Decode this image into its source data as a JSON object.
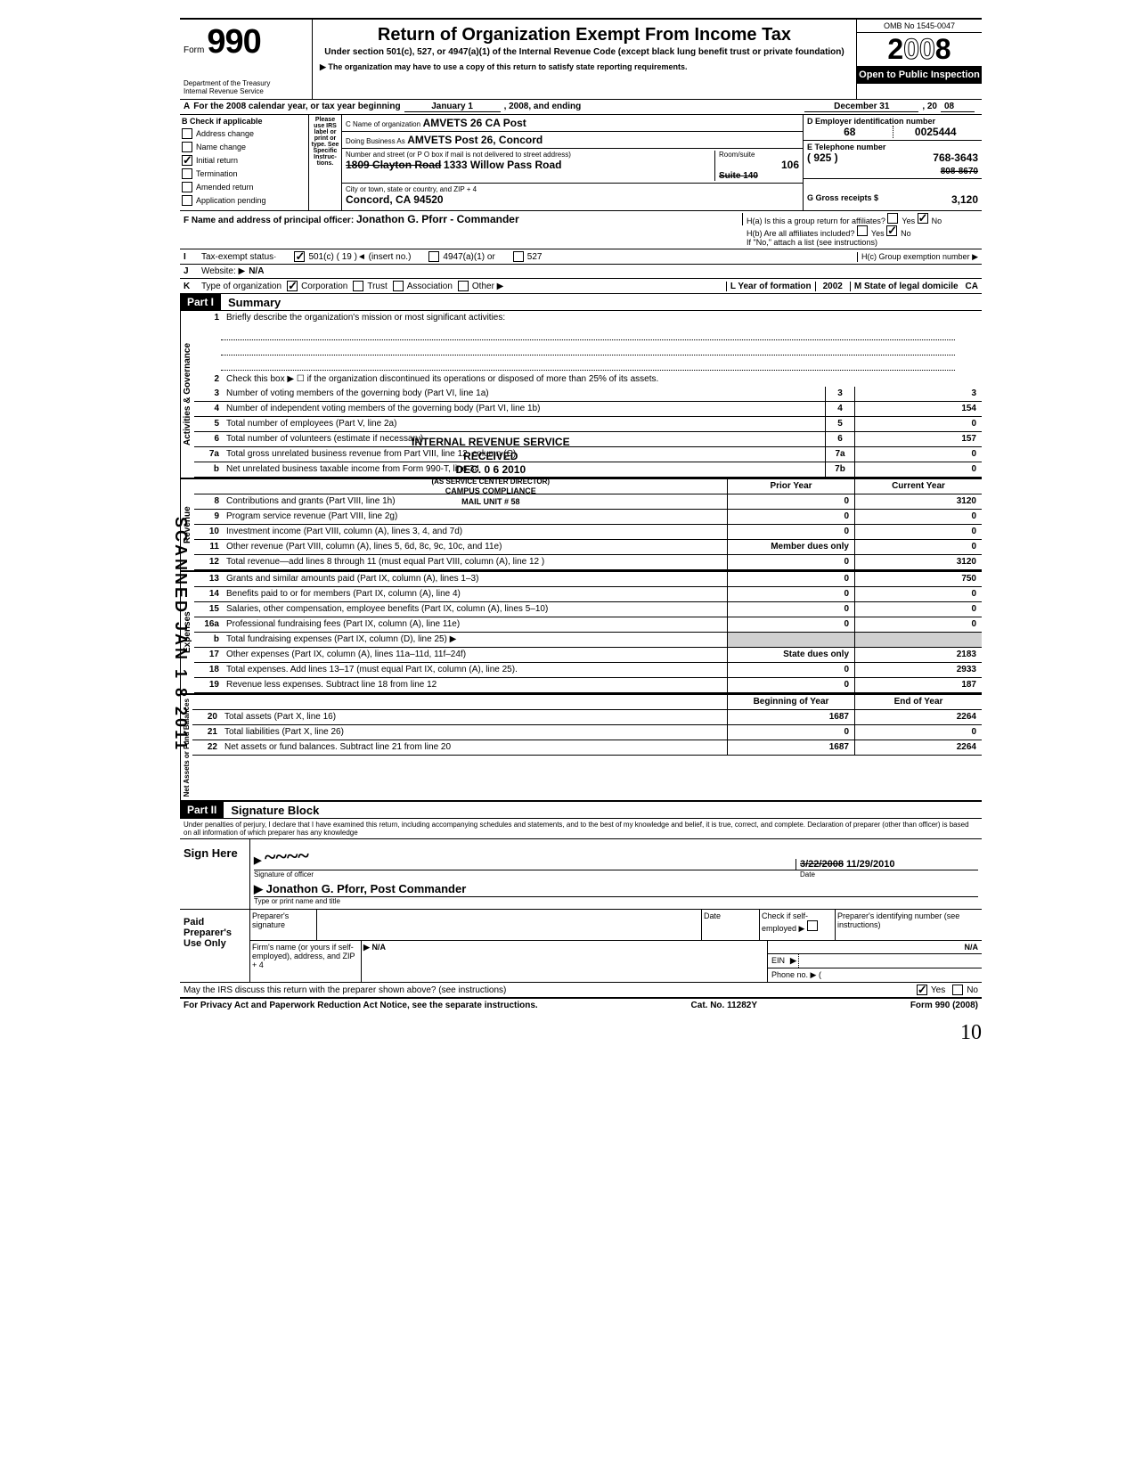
{
  "form": {
    "number": "990",
    "title": "Return of Organization Exempt From Income Tax",
    "subtitle": "Under section 501(c), 527, or 4947(a)(1) of the Internal Revenue Code (except black lung benefit trust or private foundation)",
    "note": "▶ The organization may have to use a copy of this return to satisfy state reporting requirements.",
    "omb": "OMB No 1545-0047",
    "year": "2008",
    "open_public": "Open to Public Inspection",
    "dept": "Department of the Treasury\nInternal Revenue Service"
  },
  "row_a": {
    "prefix": "A",
    "text": "For the 2008 calendar year, or tax year beginning",
    "begin": "January 1",
    "mid": ", 2008, and ending",
    "end": "December 31",
    "year_suffix": ", 20",
    "year_val": "08"
  },
  "col_b": {
    "header": "B  Check if applicable",
    "items": [
      "Address change",
      "Name change",
      "Initial return",
      "Termination",
      "Amended return",
      "Application pending"
    ],
    "checked_index": 2,
    "please": "Please use IRS label or print or type. See Specific Instruc-tions."
  },
  "col_c": {
    "name_label": "C Name of organization",
    "name": "AMVETS 26 CA Post",
    "dba_label": "Doing Business As",
    "dba": "AMVETS Post 26, Concord",
    "street_label": "Number and street (or P O box if mail is not delivered to street address)",
    "street_old": "1809 Clayton Road",
    "street": "1333 Willow Pass Road",
    "city_label": "City or town, state or country, and ZIP + 4",
    "city": "Concord, CA 94520",
    "room_label": "Room/suite",
    "room": "106",
    "suite_old": "Suite 140"
  },
  "col_d": {
    "ein_label": "D  Employer identification number",
    "ein_a": "68",
    "ein_b": "0025444",
    "tel_label": "E  Telephone number",
    "tel_area": "( 925 )",
    "tel_old": "808-8670",
    "tel": "768-3643",
    "gross_label": "G  Gross receipts $",
    "gross": "3,120"
  },
  "officer": {
    "label": "F Name and address of principal officer:",
    "name": "Jonathon G. Pforr - Commander"
  },
  "h": {
    "a": "H(a) Is this a group return for affiliates?",
    "b": "H(b) Are all affiliates included?",
    "note": "If \"No,\" attach a list (see instructions)",
    "c": "H(c) Group exemption number ▶"
  },
  "line_i": {
    "label": "I",
    "text": "Tax-exempt status·",
    "opt1": "501(c) ( 19 )◄ (insert no.)",
    "opt2": "4947(a)(1) or",
    "opt3": "527"
  },
  "line_j": {
    "label": "J",
    "text": "Website: ▶",
    "val": "N/A"
  },
  "line_k": {
    "label": "K",
    "text": "Type of organization",
    "corp": "Corporation",
    "trust": "Trust",
    "assoc": "Association",
    "other": "Other ▶",
    "year_label": "L  Year of formation",
    "year": "2002",
    "state_label": "M State of legal domicile",
    "state": "CA"
  },
  "part1": {
    "label": "Part I",
    "title": "Summary"
  },
  "governance": {
    "label": "Activities & Governance",
    "line1": "Briefly describe the organization's mission or most significant activities:",
    "line2": "Check this box ▶ ☐ if the organization discontinued its operations or disposed of more than 25% of its assets.",
    "lines": [
      {
        "n": "3",
        "t": "Number of voting members of the governing body (Part VI, line 1a)",
        "box": "3",
        "v": "3"
      },
      {
        "n": "4",
        "t": "Number of independent voting members of the governing body (Part VI, line 1b)",
        "box": "4",
        "v": "154"
      },
      {
        "n": "5",
        "t": "Total number of employees (Part V, line 2a)",
        "box": "5",
        "v": "0"
      },
      {
        "n": "6",
        "t": "Total number of volunteers (estimate if necessary)",
        "box": "6",
        "v": "157"
      },
      {
        "n": "7a",
        "t": "Total gross unrelated business revenue from Part VIII, line 12, column (C)",
        "box": "7a",
        "v": "0"
      },
      {
        "n": "b",
        "t": "Net unrelated business taxable income from Form 990-T, line 34",
        "box": "7b",
        "v": "0"
      }
    ]
  },
  "stamp1": {
    "l1": "INTERNAL REVENUE SERVICE",
    "l2": "RECEIVED",
    "l3": "DEC. 0 6  2010",
    "l4": "(AS SERVICE CENTER DIRECTOR)",
    "l5": "CAMPUS COMPLIANCE",
    "l6": "MAIL UNIT # 58"
  },
  "revenue": {
    "label": "Revenue",
    "col_prior": "Prior Year",
    "col_current": "Current Year",
    "lines": [
      {
        "n": "8",
        "t": "Contributions and grants (Part VIII, line 1h)",
        "p": "0",
        "c": "3120"
      },
      {
        "n": "9",
        "t": "Program service revenue (Part VIII, line 2g)",
        "p": "0",
        "c": "0"
      },
      {
        "n": "10",
        "t": "Investment income (Part VIII, column (A), lines 3, 4, and 7d)",
        "p": "0",
        "c": "0"
      },
      {
        "n": "11",
        "t": "Other revenue (Part VIII, column (A), lines 5, 6d, 8c, 9c, 10c, and 11e)",
        "p": "Member dues only",
        "c": "0"
      },
      {
        "n": "12",
        "t": "Total revenue—add lines 8 through 11 (must equal Part VIII, column (A), line 12 )",
        "p": "0",
        "c": "3120"
      }
    ]
  },
  "expenses": {
    "label": "Expenses",
    "lines": [
      {
        "n": "13",
        "t": "Grants and similar amounts paid (Part IX, column (A), lines 1–3)",
        "p": "0",
        "c": "750"
      },
      {
        "n": "14",
        "t": "Benefits paid to or for members (Part IX, column (A), line 4)",
        "p": "0",
        "c": "0"
      },
      {
        "n": "15",
        "t": "Salaries, other compensation, employee benefits (Part IX, column (A), lines 5–10)",
        "p": "0",
        "c": "0"
      },
      {
        "n": "16a",
        "t": "Professional fundraising fees (Part IX, column (A), line 11e)",
        "p": "0",
        "c": "0"
      },
      {
        "n": "b",
        "t": "Total fundraising expenses (Part IX, column (D), line 25) ▶",
        "p": "",
        "c": "",
        "shaded": true
      },
      {
        "n": "17",
        "t": "Other expenses (Part IX, column (A), lines 11a–11d, 11f–24f)",
        "p": "State dues only",
        "c": "2183"
      },
      {
        "n": "18",
        "t": "Total expenses. Add lines 13–17 (must equal Part IX, column (A), line 25).",
        "p": "0",
        "c": "2933"
      },
      {
        "n": "19",
        "t": "Revenue less expenses. Subtract line 18 from line 12",
        "p": "0",
        "c": "187"
      }
    ]
  },
  "netassets": {
    "label": "Net Assets or Fund Balances",
    "col_begin": "Beginning of Year",
    "col_end": "End of Year",
    "lines": [
      {
        "n": "20",
        "t": "Total assets (Part X, line 16)",
        "p": "1687",
        "c": "2264"
      },
      {
        "n": "21",
        "t": "Total liabilities (Part X, line 26)",
        "p": "0",
        "c": "0"
      },
      {
        "n": "22",
        "t": "Net assets or fund balances. Subtract line 21 from line 20",
        "p": "1687",
        "c": "2264"
      }
    ]
  },
  "part2": {
    "label": "Part II",
    "title": "Signature Block"
  },
  "penalties": "Under penalties of perjury, I declare that I have examined this return, including accompanying schedules and statements, and to the best of my knowledge and belief, it is true, correct, and complete. Declaration of preparer (other than officer) is based on all information of which preparer has any knowledge",
  "sign": {
    "here": "Sign Here",
    "sig_label": "Signature of officer",
    "date_label": "Date",
    "date_old": "3/22/2008",
    "date": "11/29/2010",
    "name": "Jonathon G. Pforr, Post Commander",
    "name_label": "Type or print name and title"
  },
  "paid": {
    "label": "Paid Preparer's Use Only",
    "prep_sig": "Preparer's signature",
    "date": "Date",
    "self_emp": "Check if self-employed ▶",
    "pin": "Preparer's identifying number (see instructions)",
    "firm": "Firm's name (or yours if self-employed), address, and ZIP + 4",
    "firm_val": "N/A",
    "ein": "EIN",
    "phone": "Phone no. ▶ (",
    "na": "N/A"
  },
  "discuss": "May the IRS discuss this return with the preparer shown above? (see instructions)",
  "footer": {
    "privacy": "For Privacy Act and Paperwork Reduction Act Notice, see the separate instructions.",
    "cat": "Cat. No. 11282Y",
    "form": "Form 990 (2008)"
  },
  "scanned": "SCANNED JAN 1 8 2011",
  "page_handwritten": "10"
}
